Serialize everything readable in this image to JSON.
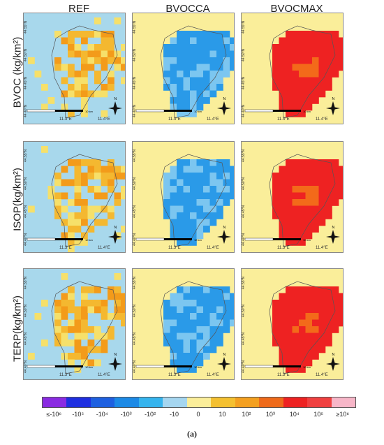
{
  "columns": [
    "REF",
    "BVOCCA",
    "BVOCMAX"
  ],
  "rows": [
    "BVOC (kg/km²)",
    "ISOP(kg/km²)",
    "TERP(kg/km²)"
  ],
  "lat_ticks": [
    "44.55°N",
    "44.50°N",
    "44.45°N",
    "44.40°N"
  ],
  "lon_ticks": [
    "11.3°E",
    "11.4°E"
  ],
  "scale_label": "10 km",
  "north_label": "N",
  "legend": {
    "labels": [
      "≤-10⁶",
      "-10⁵",
      "-10⁴",
      "-10³",
      "-10²",
      "-10",
      "0",
      "10",
      "10²",
      "10³",
      "10⁴",
      "10⁵",
      "≥10⁶"
    ],
    "colors": [
      "#8a2be2",
      "#1f2fe0",
      "#1e60e0",
      "#1c8ae6",
      "#35b4ee",
      "#a5d6f0",
      "#fbee9a",
      "#f4c030",
      "#f4a020",
      "#ef6a1a",
      "#ee2222",
      "#f04040",
      "#f7b6c8"
    ]
  },
  "caption": "(a)",
  "colors": {
    "ref_bg": "#a8d8ec",
    "ref_low": "#f6e06a",
    "ref_mid": "#f4b830",
    "ref_high": "#f39b1a",
    "ca_bg": "#faee9a",
    "ca_fill": "#2a9ae8",
    "ca_light": "#7cc6f0",
    "max_bg": "#faee9a",
    "max_fill": "#ee2222",
    "max_mid": "#f36a1a"
  }
}
